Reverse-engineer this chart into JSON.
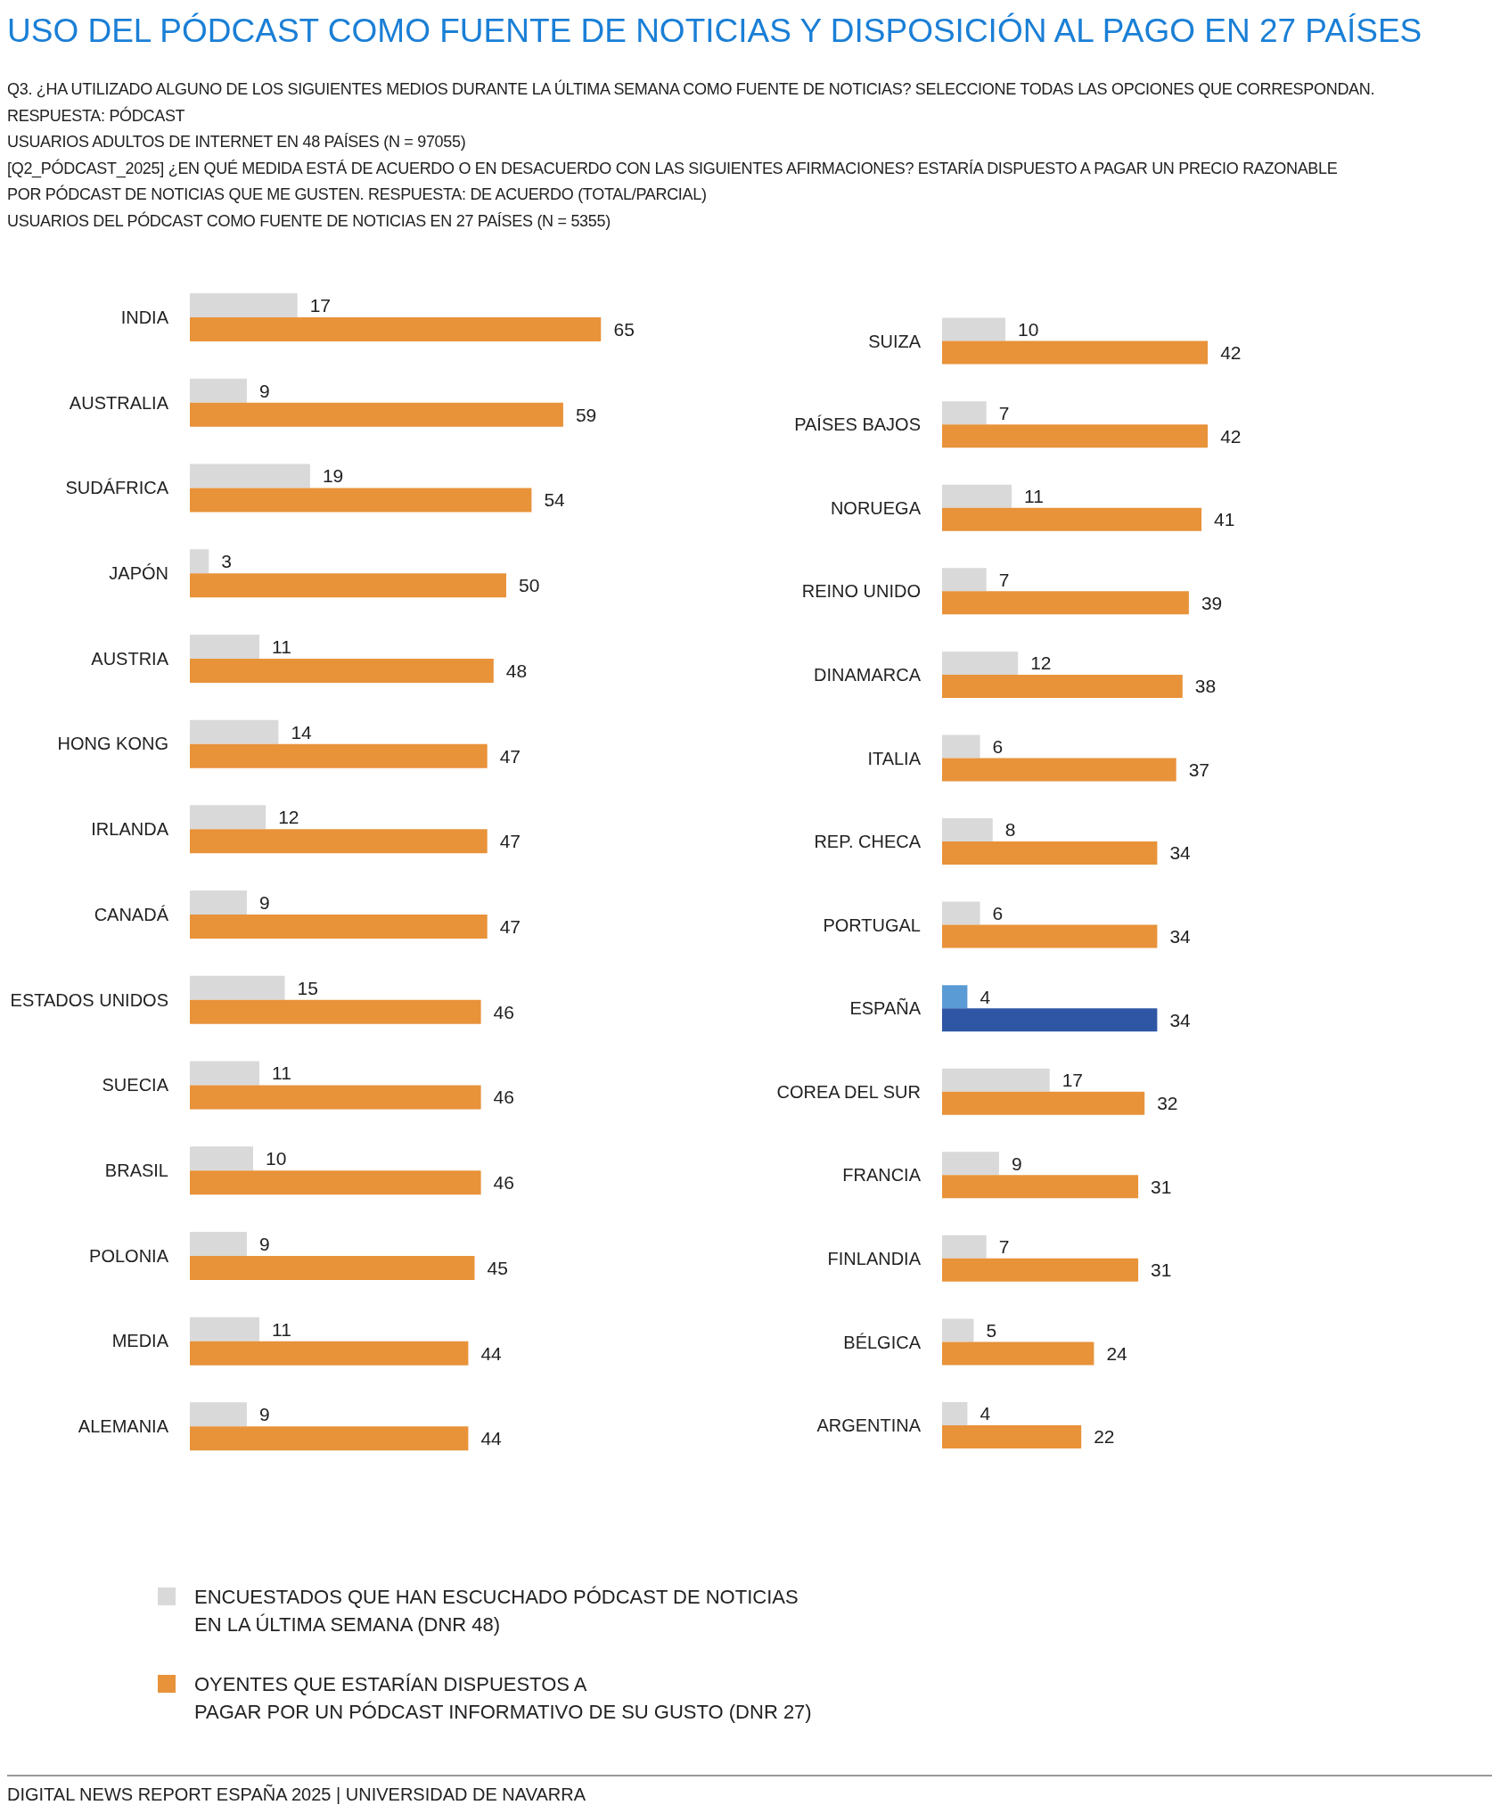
{
  "chart_data": [
    {
      "type": "bar",
      "orientation": "horizontal",
      "title": "USO DEL PÓDCAST COMO FUENTE DE NOTICIAS Y DISPOSICIÓN AL PAGO EN 27 PAÍSES",
      "subtitle": "Q3. ¿HA UTILIZADO ALGUNO DE LOS SIGUIENTES MEDIOS DURANTE LA ÚLTIMA SEMANA COMO FUENTE DE NOTICIAS? SELECCIONE TODAS LAS OPCIONES QUE CORRESPONDAN.\nRESPUESTA: PÓDCAST\nUSUARIOS ADULTOS DE INTERNET EN 48 PAÍSES (N = 97055)\n[Q2_PÓDCAST_2025] ¿EN QUÉ MEDIDA ESTÁ DE ACUERDO O EN DESACUERDO CON LAS SIGUIENTES AFIRMACIONES? ESTARÍA DISPUESTO A PAGAR UN PRECIO RAZONABLE\nPOR PÓDCAST DE NOTICIAS QUE ME GUSTEN. RESPUESTA: DE ACUERDO (TOTAL/PARCIAL)\nUSUARIOS DEL PÓDCAST COMO FUENTE DE NOTICIAS EN 27 PAÍSES (N = 5355)",
      "annotations": [
        "DIGITAL NEWS REPORT ESPAÑA 2025 | UNIVERSIDAD DE NAVARRA"
      ],
      "categories": [
        "INDIA",
        "AUSTRALIA",
        "SUDÁFRICA",
        "JAPÓN",
        "AUSTRIA",
        "HONG KONG",
        "IRLANDA",
        "CANADÁ",
        "ESTADOS UNIDOS",
        "SUECIA",
        "BRASIL",
        "POLONIA",
        "MEDIA",
        "ALEMANIA"
      ],
      "series": [
        {
          "name": "ENCUESTADOS QUE HAN ESCUCHADO PÓDCAST DE NOTICIAS\nEN LA ÚLTIMA SEMANA (DNR 48)",
          "color": "#d9d9d9",
          "values": [
            17,
            9,
            19,
            3,
            11,
            14,
            12,
            9,
            15,
            11,
            10,
            9,
            11,
            9
          ]
        },
        {
          "name": "OYENTES QUE ESTARÍAN DISPUESTOS A\nPAGAR POR UN PÓDCAST INFORMATIVO DE SU GUSTO (DNR 27)",
          "color": "#e8923a",
          "values": [
            65,
            59,
            54,
            50,
            48,
            47,
            47,
            47,
            46,
            46,
            46,
            45,
            44,
            44
          ]
        }
      ],
      "tick_labels": "y",
      "data_labels": true,
      "legend": "bottom"
    },
    {
      "type": "bar",
      "orientation": "horizontal",
      "categories": [
        "SUIZA",
        "PAÍSES BAJOS",
        "NORUEGA",
        "REINO UNIDO",
        "DINAMARCA",
        "ITALIA",
        "REP. CHECA",
        "PORTUGAL",
        "ESPAÑA",
        "COREA DEL SUR",
        "FRANCIA",
        "FINLANDIA",
        "BÉLGICA",
        "ARGENTINA"
      ],
      "series": [
        {
          "color": "#d9d9d9",
          "colors": [
            "#d9d9d9",
            "#d9d9d9",
            "#d9d9d9",
            "#d9d9d9",
            "#d9d9d9",
            "#d9d9d9",
            "#d9d9d9",
            "#d9d9d9",
            "#5b9bd5",
            "#d9d9d9",
            "#d9d9d9",
            "#d9d9d9",
            "#d9d9d9",
            "#d9d9d9"
          ],
          "values": [
            10,
            7,
            11,
            7,
            12,
            6,
            8,
            6,
            4,
            17,
            9,
            7,
            5,
            4
          ]
        },
        {
          "color": "#e8923a",
          "colors": [
            "#e8923a",
            "#e8923a",
            "#e8923a",
            "#e8923a",
            "#e8923a",
            "#e8923a",
            "#e8923a",
            "#e8923a",
            "#2e56a5",
            "#e8923a",
            "#e8923a",
            "#e8923a",
            "#e8923a",
            "#e8923a"
          ],
          "values": [
            42,
            42,
            41,
            39,
            38,
            37,
            34,
            34,
            34,
            32,
            31,
            31,
            24,
            22
          ]
        }
      ],
      "tick_labels": "y",
      "data_labels": true
    }
  ]
}
